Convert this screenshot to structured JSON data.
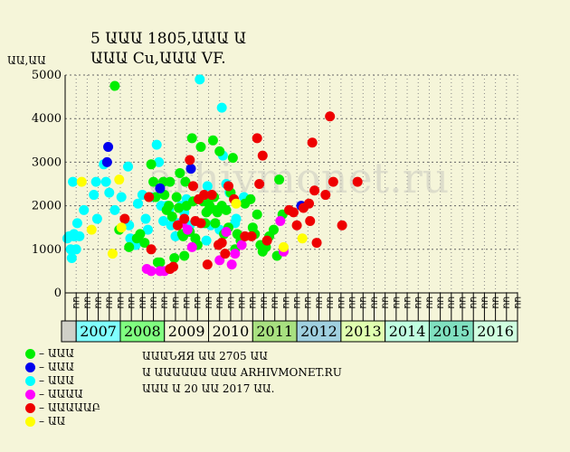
{
  "header": {
    "title_line1": "5 ԱԱԱ 1805,ԱԱԱ Ա",
    "title_line2": "ԱԱԱ Cu,ԱԱԱ VF."
  },
  "ylabel": "ԱԱ,ԱԱ",
  "watermark": "arhivmonet.ru",
  "info": {
    "line1": "ԱԱԱՆЯЯ ԱԱ 2705 ԱԱ",
    "line2": "Ա ԱԱԱԱԱԱ ԱԱԱ ARHIVMONET.RU",
    "line3": "ԱԱԱ Ա 20 ԱԱ 2017 ԱԱ."
  },
  "legend": [
    {
      "label": "– ԱԱԱ",
      "color": "#00ee00"
    },
    {
      "label": "– ԱԱԱ",
      "color": "#0000ee"
    },
    {
      "label": "– ԱԱԱ",
      "color": "#00ffff"
    },
    {
      "label": "– ԱԱԱԱ",
      "color": "#ff00ff"
    },
    {
      "label": "– ԱԱԱԱԱԲ",
      "color": "#ee0000"
    },
    {
      "label": "– ԱԱ",
      "color": "#ffff00"
    }
  ],
  "chart_data": {
    "type": "scatter",
    "title": "5 ԱԱԱ 1805,ԱԱԱ Ա / ԱԱԱ Cu,ԱԱԱ VF.",
    "ylabel": "ԱԱ,ԱԱ",
    "ylim": [
      0,
      5000
    ],
    "yticks": [
      0,
      1000,
      2000,
      3000,
      4000,
      5000
    ],
    "grid": true,
    "legend_position": "bottom-left",
    "quarter_labels": [
      "ԱԱ",
      "ԱԱ",
      "ԱԱ",
      "ԱԱ",
      "ԱԱ",
      "ԱԱ",
      "ԱԱ",
      "ԱԱ",
      "ԱԱ",
      "ԱԱ",
      "ԱԱ",
      "ԱԱ",
      "ԱԱ",
      "ԱԱ",
      "ԱԱ",
      "ԱԱ",
      "ԱԱ",
      "ԱԱ",
      "ԱԱ",
      "ԱԱ",
      "ԱԱ",
      "ԱԱ",
      "ԱԱ",
      "ԱԱ",
      "ԱԱ",
      "ԱԱ",
      "ԱԱ",
      "ԱԱ",
      "ԱԱ",
      "ԱԱ",
      "ԱԱ",
      "ԱԱ",
      "ԱԱ",
      "ԱԱ",
      "ԱԱ",
      "ԱԱ",
      "ԱԱ",
      "ԱԱ",
      "ԱԱ",
      "ԱԱ",
      "ԱԱ"
    ],
    "years": [
      {
        "label": "2007",
        "start": 1,
        "end": 5,
        "color": "#80ffff"
      },
      {
        "label": "2008",
        "start": 5,
        "end": 9,
        "color": "#80ff80"
      },
      {
        "label": "2009",
        "start": 9,
        "end": 13,
        "color": "#f5f5d9"
      },
      {
        "label": "2010",
        "start": 13,
        "end": 17,
        "color": "#f5f5d9"
      },
      {
        "label": "2011",
        "start": 17,
        "end": 21,
        "color": "#a8e080"
      },
      {
        "label": "2012",
        "start": 21,
        "end": 25,
        "color": "#a0d0e0"
      },
      {
        "label": "2013",
        "start": 25,
        "end": 29,
        "color": "#e0ffb0"
      },
      {
        "label": "2014",
        "start": 29,
        "end": 33,
        "color": "#c0ffe0"
      },
      {
        "label": "2015",
        "start": 33,
        "end": 37,
        "color": "#80e0c0"
      },
      {
        "label": "2016",
        "start": 37,
        "end": 41,
        "color": "#d0ffe0"
      }
    ],
    "series": [
      {
        "color": "#00ffff",
        "points": [
          [
            0.2,
            1250
          ],
          [
            0.35,
            1300
          ],
          [
            0.5,
            1000
          ],
          [
            0.6,
            800
          ],
          [
            0.7,
            2550
          ],
          [
            0.75,
            1300
          ],
          [
            0.8,
            1350
          ],
          [
            0.9,
            1300
          ],
          [
            1.0,
            1000
          ],
          [
            1.1,
            1600
          ],
          [
            1.3,
            1300
          ],
          [
            1.7,
            1900
          ],
          [
            2.6,
            2250
          ],
          [
            2.8,
            2550
          ],
          [
            2.9,
            1700
          ],
          [
            3.5,
            2950
          ],
          [
            3.7,
            2550
          ],
          [
            4.0,
            2300
          ],
          [
            4.5,
            1900
          ],
          [
            5.1,
            2200
          ],
          [
            5.7,
            2900
          ],
          [
            5.8,
            1550
          ],
          [
            5.9,
            1250
          ],
          [
            6.4,
            1100
          ],
          [
            6.6,
            2050
          ],
          [
            7.0,
            2250
          ],
          [
            7.3,
            1700
          ],
          [
            7.5,
            1450
          ],
          [
            7.8,
            2200
          ],
          [
            8.3,
            3400
          ],
          [
            8.5,
            3000
          ],
          [
            8.7,
            2000
          ],
          [
            8.9,
            1650
          ],
          [
            9.2,
            2000
          ],
          [
            9.4,
            1900
          ],
          [
            9.6,
            1550
          ],
          [
            10.0,
            1300
          ],
          [
            10.2,
            1600
          ],
          [
            10.5,
            2000
          ],
          [
            10.8,
            1850
          ],
          [
            11.0,
            2150
          ],
          [
            11.3,
            1550
          ],
          [
            12.2,
            4900
          ],
          [
            12.5,
            1600
          ],
          [
            12.8,
            1200
          ],
          [
            12.9,
            2450
          ],
          [
            13.2,
            1550
          ],
          [
            14.0,
            1450
          ],
          [
            14.2,
            4250
          ],
          [
            14.3,
            3150
          ],
          [
            14.6,
            2500
          ],
          [
            14.9,
            2300
          ],
          [
            15.4,
            1600
          ],
          [
            15.5,
            1700
          ],
          [
            16.2,
            2200
          ]
        ]
      },
      {
        "color": "#00ee00",
        "points": [
          [
            4.5,
            4750
          ],
          [
            4.9,
            1450
          ],
          [
            5.8,
            1050
          ],
          [
            6.5,
            1250
          ],
          [
            6.8,
            1350
          ],
          [
            7.2,
            1150
          ],
          [
            7.6,
            2200
          ],
          [
            7.8,
            2950
          ],
          [
            8.0,
            2550
          ],
          [
            8.2,
            2200
          ],
          [
            8.4,
            700
          ],
          [
            8.6,
            700
          ],
          [
            8.9,
            2550
          ],
          [
            9.0,
            2250
          ],
          [
            9.2,
            1900
          ],
          [
            9.4,
            2000
          ],
          [
            9.5,
            2550
          ],
          [
            9.7,
            1750
          ],
          [
            9.9,
            800
          ],
          [
            10.1,
            2200
          ],
          [
            10.3,
            1950
          ],
          [
            10.4,
            2750
          ],
          [
            10.6,
            1350
          ],
          [
            10.7,
            1300
          ],
          [
            10.8,
            850
          ],
          [
            10.9,
            2550
          ],
          [
            11.0,
            2000
          ],
          [
            11.3,
            1400
          ],
          [
            11.5,
            3550
          ],
          [
            11.6,
            2100
          ],
          [
            11.8,
            1250
          ],
          [
            12.0,
            1100
          ],
          [
            12.3,
            3350
          ],
          [
            12.5,
            2100
          ],
          [
            12.7,
            1600
          ],
          [
            12.8,
            1850
          ],
          [
            13.0,
            1900
          ],
          [
            13.1,
            2000
          ],
          [
            13.2,
            2200
          ],
          [
            13.4,
            3500
          ],
          [
            13.5,
            2200
          ],
          [
            13.6,
            1600
          ],
          [
            13.7,
            1900
          ],
          [
            13.8,
            1850
          ],
          [
            14.0,
            3250
          ],
          [
            14.2,
            2000
          ],
          [
            14.4,
            1350
          ],
          [
            14.6,
            1900
          ],
          [
            14.8,
            1500
          ],
          [
            15.0,
            2300
          ],
          [
            15.2,
            3100
          ],
          [
            15.4,
            1000
          ],
          [
            15.6,
            1350
          ],
          [
            15.9,
            1200
          ],
          [
            16.3,
            2050
          ],
          [
            16.8,
            2150
          ],
          [
            17.0,
            1500
          ],
          [
            17.2,
            1350
          ],
          [
            17.4,
            1800
          ],
          [
            17.7,
            1100
          ],
          [
            17.9,
            950
          ],
          [
            18.2,
            1050
          ],
          [
            18.5,
            1300
          ],
          [
            18.9,
            1450
          ],
          [
            19.2,
            850
          ],
          [
            19.4,
            2600
          ],
          [
            19.7,
            1800
          ]
        ]
      },
      {
        "color": "#0000ee",
        "points": [
          [
            3.8,
            3000
          ],
          [
            3.9,
            3350
          ],
          [
            8.6,
            2400
          ],
          [
            11.4,
            2850
          ],
          [
            21.4,
            2000
          ]
        ]
      },
      {
        "color": "#ff00ff",
        "points": [
          [
            7.4,
            550
          ],
          [
            7.8,
            500
          ],
          [
            8.6,
            500
          ],
          [
            9.0,
            500
          ],
          [
            9.5,
            550
          ],
          [
            10.6,
            1600
          ],
          [
            11.1,
            1450
          ],
          [
            11.5,
            1050
          ],
          [
            14.0,
            750
          ],
          [
            14.6,
            1400
          ],
          [
            15.1,
            650
          ],
          [
            15.4,
            900
          ],
          [
            16.0,
            1100
          ],
          [
            19.5,
            1650
          ],
          [
            19.8,
            950
          ]
        ]
      },
      {
        "color": "#ee0000",
        "points": [
          [
            5.4,
            1700
          ],
          [
            7.6,
            2200
          ],
          [
            7.8,
            1000
          ],
          [
            9.5,
            550
          ],
          [
            9.8,
            600
          ],
          [
            10.2,
            1550
          ],
          [
            10.8,
            1700
          ],
          [
            11.3,
            3050
          ],
          [
            11.6,
            2450
          ],
          [
            11.8,
            1650
          ],
          [
            12.1,
            2150
          ],
          [
            12.3,
            1600
          ],
          [
            12.6,
            2250
          ],
          [
            12.9,
            650
          ],
          [
            13.3,
            2250
          ],
          [
            13.9,
            1100
          ],
          [
            14.2,
            1150
          ],
          [
            14.5,
            900
          ],
          [
            14.8,
            2450
          ],
          [
            15.3,
            2150
          ],
          [
            16.3,
            1300
          ],
          [
            16.9,
            1300
          ],
          [
            17.4,
            3550
          ],
          [
            17.6,
            2500
          ],
          [
            17.9,
            3150
          ],
          [
            18.3,
            1200
          ],
          [
            20.3,
            1900
          ],
          [
            20.7,
            1850
          ],
          [
            21.0,
            1550
          ],
          [
            21.6,
            1950
          ],
          [
            22.1,
            2050
          ],
          [
            22.2,
            1650
          ],
          [
            22.4,
            3450
          ],
          [
            22.6,
            2350
          ],
          [
            22.8,
            1150
          ],
          [
            23.6,
            2250
          ],
          [
            24.0,
            4050
          ],
          [
            24.3,
            2550
          ],
          [
            25.1,
            1550
          ],
          [
            26.5,
            2550
          ]
        ]
      },
      {
        "color": "#ffff00",
        "points": [
          [
            1.5,
            2550
          ],
          [
            2.4,
            1450
          ],
          [
            4.3,
            900
          ],
          [
            4.9,
            2600
          ],
          [
            5.1,
            1500
          ],
          [
            15.5,
            2050
          ],
          [
            19.8,
            1050
          ],
          [
            21.5,
            1250
          ]
        ]
      }
    ]
  }
}
